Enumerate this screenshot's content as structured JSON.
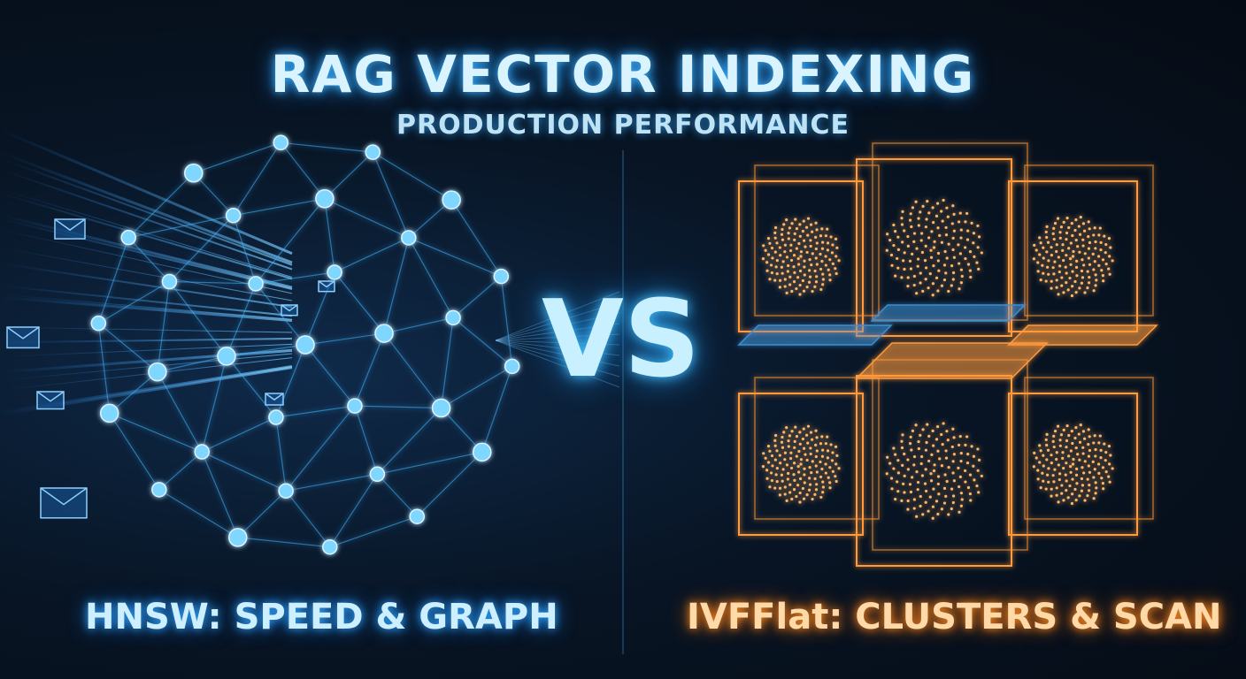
{
  "title": "RAG VECTOR INDEXING",
  "subtitle": "PRODUCTION PERFORMANCE",
  "vs_text": "VS",
  "left_label": "HNSW: SPEED & GRAPH",
  "right_label": "IVFFlat: CLUSTERS & SCAN",
  "colors": {
    "background": "#07101d",
    "hnsw_accent": "#3fb4ff",
    "ivfflat_accent": "#ff9a3c"
  },
  "icons": [
    "envelope-icon",
    "graph-network-icon",
    "cluster-cube-icon"
  ]
}
